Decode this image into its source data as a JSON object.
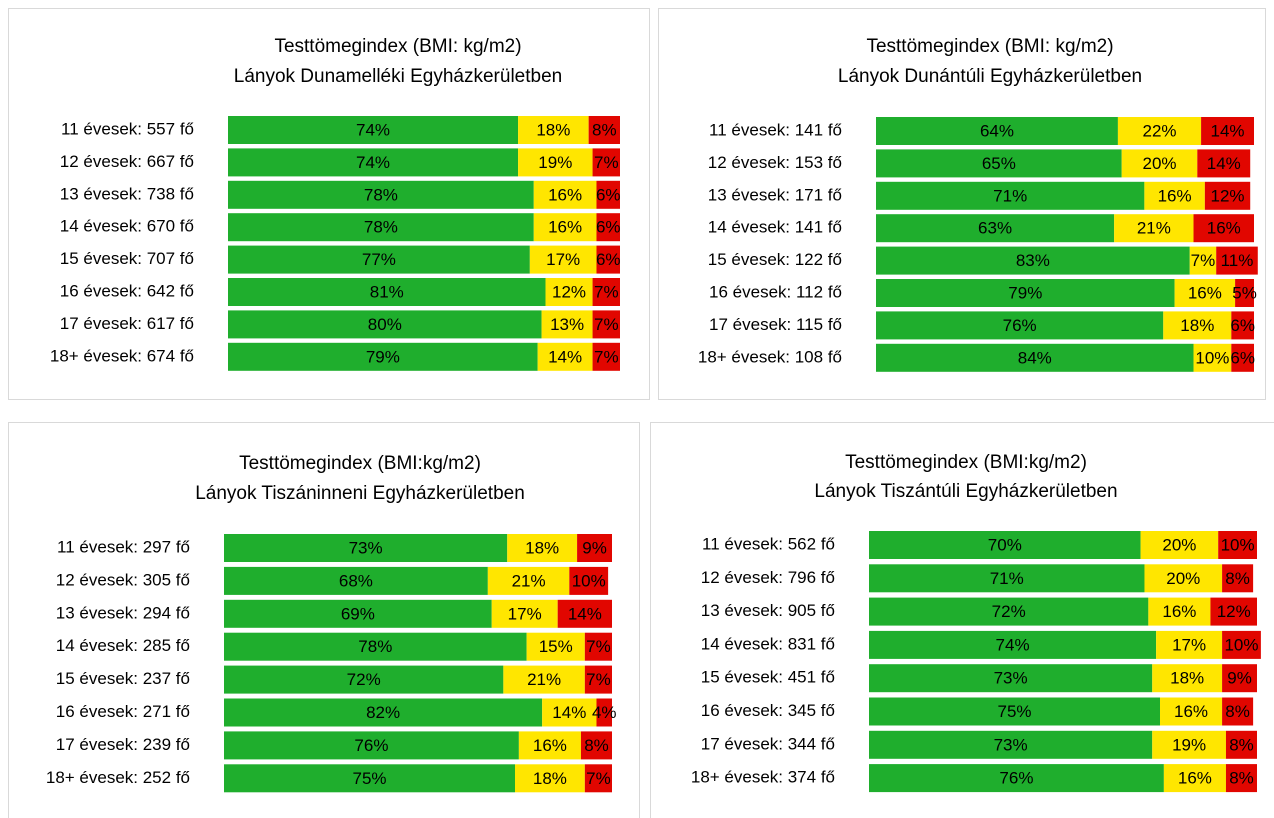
{
  "chart_data": [
    {
      "type": "bar",
      "orientation": "horizontal",
      "stacked": true,
      "title": "Testtömegindex (BMI: kg/m2)",
      "subtitle": "Lányok Dunamelléki Egyházkerületben",
      "categories": [
        "11 évesek: 557 fő",
        "12 évesek: 667 fő",
        "13 évesek: 738 fő",
        "14 évesek: 670 fő",
        "15 évesek: 707 fő",
        "16 évesek: 642 fő",
        "17 évesek: 617 fő",
        "18+ évesek: 674 fő"
      ],
      "xlim": [
        0,
        100
      ],
      "series": [
        {
          "color": "#1fae2d",
          "values": [
            74,
            74,
            78,
            78,
            77,
            81,
            80,
            79
          ],
          "value_labels": [
            "74%",
            "74%",
            "78%",
            "78%",
            "77%",
            "81%",
            "80%",
            "79%"
          ]
        },
        {
          "color": "#ffe600",
          "values": [
            18,
            19,
            16,
            16,
            17,
            12,
            13,
            14
          ],
          "value_labels": [
            "18%",
            "19%",
            "16%",
            "16%",
            "17%",
            "12%",
            "13%",
            "14%"
          ]
        },
        {
          "color": "#e10600",
          "values": [
            8,
            7,
            6,
            6,
            6,
            7,
            7,
            7
          ],
          "value_labels": [
            "8%",
            "7%",
            "6%",
            "6%",
            "6%",
            "7%",
            "7%",
            "7%"
          ]
        }
      ]
    },
    {
      "type": "bar",
      "orientation": "horizontal",
      "stacked": true,
      "title": "Testtömegindex (BMI: kg/m2)",
      "subtitle": "Lányok Dunántúli Egyházkerületben",
      "categories": [
        "11 évesek: 141 fő",
        "12 évesek: 153 fő",
        "13 évesek: 171 fő",
        "14 évesek: 141 fő",
        "15 évesek: 122 fő",
        "16 évesek: 112 fő",
        "17 évesek: 115 fő",
        "18+ évesek: 108 fő"
      ],
      "xlim": [
        0,
        100
      ],
      "series": [
        {
          "color": "#1fae2d",
          "values": [
            64,
            65,
            71,
            63,
            83,
            79,
            76,
            84
          ],
          "value_labels": [
            "64%",
            "65%",
            "71%",
            "63%",
            "83%",
            "79%",
            "76%",
            "84%"
          ]
        },
        {
          "color": "#ffe600",
          "values": [
            22,
            20,
            16,
            21,
            7,
            16,
            18,
            10
          ],
          "value_labels": [
            "22%",
            "20%",
            "16%",
            "21%",
            "7%",
            "16%",
            "18%",
            "10%"
          ]
        },
        {
          "color": "#e10600",
          "values": [
            14,
            14,
            12,
            16,
            11,
            5,
            6,
            6
          ],
          "value_labels": [
            "14%",
            "14%",
            "12%",
            "16%",
            "11%",
            "5%",
            "6%",
            "6%"
          ]
        }
      ]
    },
    {
      "type": "bar",
      "orientation": "horizontal",
      "stacked": true,
      "title": "Testtömegindex (BMI:kg/m2)",
      "subtitle": "Lányok Tiszáninneni Egyházkerületben",
      "categories": [
        "11 évesek: 297 fő",
        "12 évesek: 305 fő",
        "13 évesek: 294 fő",
        "14 évesek: 285 fő",
        "15 évesek: 237 fő",
        "16 évesek: 271 fő",
        "17 évesek: 239 fő",
        "18+ évesek: 252 fő"
      ],
      "xlim": [
        0,
        100
      ],
      "series": [
        {
          "color": "#1fae2d",
          "values": [
            73,
            68,
            69,
            78,
            72,
            82,
            76,
            75
          ],
          "value_labels": [
            "73%",
            "68%",
            "69%",
            "78%",
            "72%",
            "82%",
            "76%",
            "75%"
          ]
        },
        {
          "color": "#ffe600",
          "values": [
            18,
            21,
            17,
            15,
            21,
            14,
            16,
            18
          ],
          "value_labels": [
            "18%",
            "21%",
            "17%",
            "15%",
            "21%",
            "14%",
            "16%",
            "18%"
          ]
        },
        {
          "color": "#e10600",
          "values": [
            9,
            10,
            14,
            7,
            7,
            4,
            8,
            7
          ],
          "value_labels": [
            "9%",
            "10%",
            "14%",
            "7%",
            "7%",
            "4%",
            "8%",
            "7%"
          ]
        }
      ]
    },
    {
      "type": "bar",
      "orientation": "horizontal",
      "stacked": true,
      "title": "Testtömegindex (BMI:kg/m2)",
      "subtitle": "Lányok Tiszántúli Egyházkerületben",
      "categories": [
        "11 évesek: 562 fő",
        "12 évesek: 796 fő",
        "13 évesek: 905 fő",
        "14 évesek: 831 fő",
        "15 évesek: 451 fő",
        "16 évesek: 345 fő",
        "17 évesek: 344 fő",
        "18+ évesek: 374 fő"
      ],
      "xlim": [
        0,
        100
      ],
      "series": [
        {
          "color": "#1fae2d",
          "values": [
            70,
            71,
            72,
            74,
            73,
            75,
            73,
            76
          ],
          "value_labels": [
            "70%",
            "71%",
            "72%",
            "74%",
            "73%",
            "75%",
            "73%",
            "76%"
          ]
        },
        {
          "color": "#ffe600",
          "values": [
            20,
            20,
            16,
            17,
            18,
            16,
            19,
            16
          ],
          "value_labels": [
            "20%",
            "20%",
            "16%",
            "17%",
            "18%",
            "16%",
            "19%",
            "16%"
          ]
        },
        {
          "color": "#e10600",
          "values": [
            10,
            8,
            12,
            10,
            9,
            8,
            8,
            8
          ],
          "value_labels": [
            "10%",
            "8%",
            "12%",
            "10%",
            "9%",
            "8%",
            "8%",
            "8%"
          ]
        }
      ]
    }
  ]
}
